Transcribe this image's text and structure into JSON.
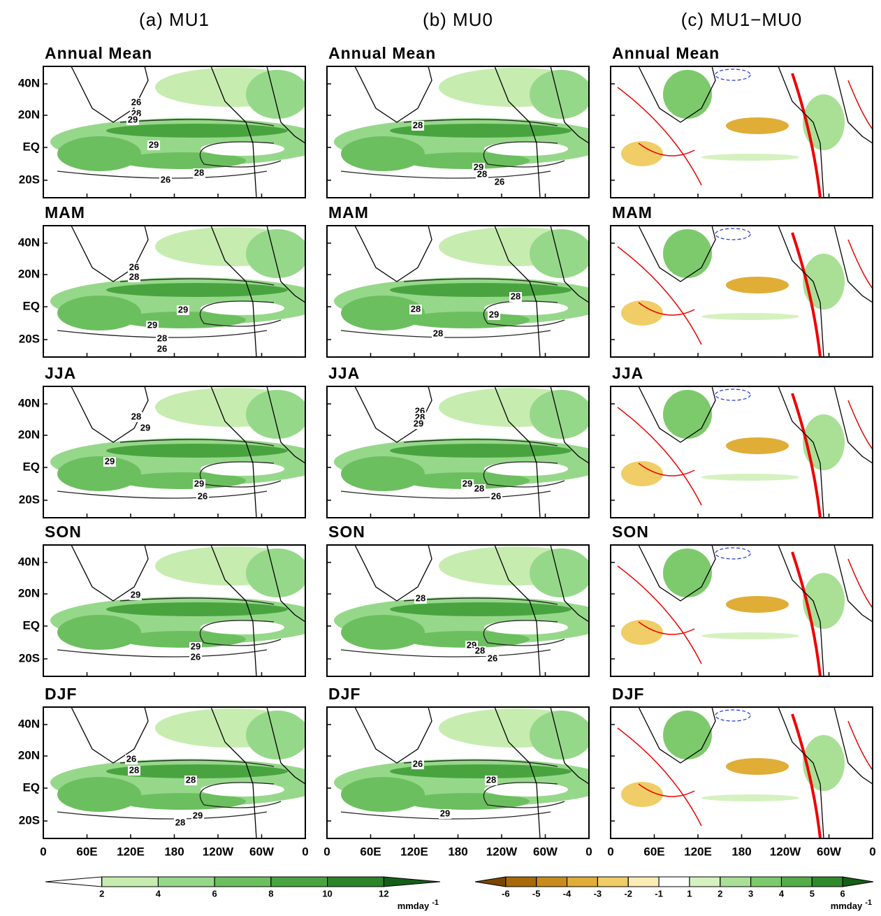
{
  "columns": [
    {
      "title": "(a) MU1",
      "panels": [
        {
          "label": "Annual Mean",
          "contour_labels": [
            26,
            28,
            29,
            29,
            28,
            26
          ]
        },
        {
          "label": "MAM",
          "contour_labels": [
            26,
            28,
            29,
            29,
            28,
            26
          ]
        },
        {
          "label": "JJA",
          "contour_labels": [
            28,
            29,
            29,
            29,
            26
          ]
        },
        {
          "label": "SON",
          "contour_labels": [
            29,
            29,
            26
          ]
        },
        {
          "label": "DJF",
          "contour_labels": [
            26,
            28,
            28,
            29,
            28
          ]
        }
      ]
    },
    {
      "title": "(b) MU0",
      "panels": [
        {
          "label": "Annual Mean",
          "contour_labels": [
            28,
            29,
            28,
            26
          ]
        },
        {
          "label": "MAM",
          "contour_labels": [
            28,
            28,
            29,
            28
          ]
        },
        {
          "label": "JJA",
          "contour_labels": [
            26,
            28,
            29,
            29,
            28,
            26
          ]
        },
        {
          "label": "SON",
          "contour_labels": [
            28,
            29,
            28,
            26
          ]
        },
        {
          "label": "DJF",
          "contour_labels": [
            26,
            28,
            29
          ]
        }
      ]
    },
    {
      "title": "(c) MU1−MU0",
      "panels": [
        {
          "label": "Annual Mean",
          "contour_labels": []
        },
        {
          "label": "MAM",
          "contour_labels": []
        },
        {
          "label": "JJA",
          "contour_labels": []
        },
        {
          "label": "SON",
          "contour_labels": []
        },
        {
          "label": "DJF",
          "contour_labels": []
        }
      ]
    }
  ],
  "y_axis_labels": [
    "40N",
    "20N",
    "EQ",
    "20S"
  ],
  "x_axis_labels": [
    "0",
    "60E",
    "120E",
    "180",
    "120W",
    "60W",
    "0"
  ],
  "colorbars": [
    {
      "ticks": [
        2,
        4,
        6,
        8,
        10,
        12
      ],
      "unit": "mmday",
      "unit_exponent": "-1",
      "colors": [
        "#ffffff",
        "#c7ecb0",
        "#96d88a",
        "#6cbf5f",
        "#49a440",
        "#2e842a",
        "#145f17"
      ]
    },
    {
      "ticks": [
        -6,
        -5,
        -4,
        -3,
        -2,
        -1,
        1,
        2,
        3,
        4,
        5,
        6
      ],
      "unit": "mmday",
      "unit_exponent": "-1",
      "colors": [
        "#7a4500",
        "#a86a08",
        "#c98c1c",
        "#e0ad36",
        "#f0cd66",
        "#faecb4",
        "#ffffff",
        "#d5f1c0",
        "#a9e096",
        "#7dca6c",
        "#54ad48",
        "#2f8a2c",
        "#145f17"
      ]
    }
  ]
}
